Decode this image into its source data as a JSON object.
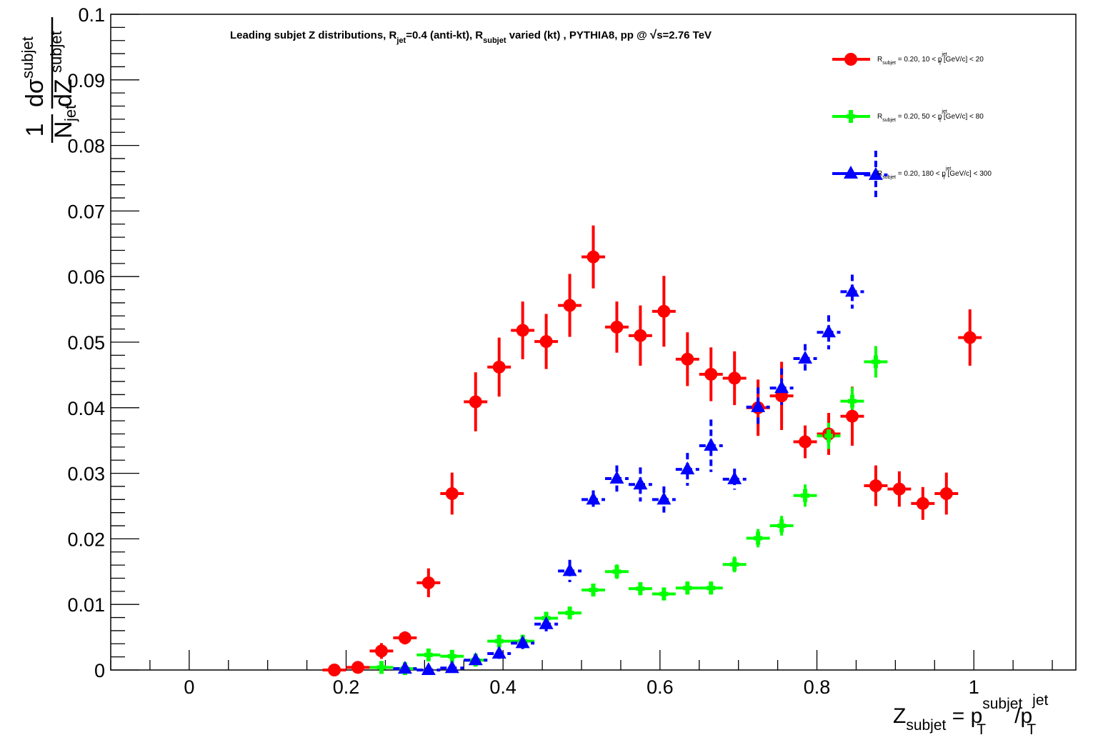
{
  "chart_data": {
    "type": "scatter",
    "title": "Leading subjet Z distributions, R_jet=0.4 (anti-kt), R_subjet varied (kt) , PYTHIA8, pp @ √s=2.76 TeV",
    "title_parts": {
      "p1": "Leading subjet Z distributions, R",
      "s1": "jet",
      "p2": "=0.4 (anti-kt), R",
      "s2": "subjet",
      "p3": " varied (kt) , PYTHIA8, pp @ ",
      "p4": "s=2.76 TeV"
    },
    "xlabel": "Z_subjet = p_T^subjet/p_T^jet",
    "xlabel_parts": {
      "z": "Z",
      "sub": "subjet",
      "eq": " = p",
      "sup1": "subjet",
      "T": "T",
      "slash": "/p",
      "sup2": "jet"
    },
    "ylabel": "1/N_jet dσ^subjet/dZ^subjet",
    "ylabel_parts": {
      "one": "1",
      "n": "N",
      "jet": "jet",
      "d1": "dσ",
      "sup1": "subjet",
      "d2": "dZ",
      "sup2": "subjet"
    },
    "xlim": [
      -0.1,
      1.13
    ],
    "ylim": [
      0,
      0.1
    ],
    "x_ticks": [
      "0",
      "0.2",
      "0.4",
      "0.6",
      "0.8",
      "1"
    ],
    "y_ticks": [
      "0",
      "0.01",
      "0.02",
      "0.03",
      "0.04",
      "0.05",
      "0.06",
      "0.07",
      "0.08",
      "0.09",
      "0.1"
    ],
    "grid": false,
    "legend_position": "top-right",
    "series": [
      {
        "name": "R_subjet = 0.20, 10 < p_T^jet [GeV/c] < 20",
        "legend": {
          "r": "R",
          "sub": "subjet",
          "a": " = 0.20,   10 < p",
          "jet": "jet",
          "T": "T",
          "b": " [GeV/c] <   20"
        },
        "color": "#ff0000",
        "marker": "circle",
        "points": [
          {
            "x": 0.185,
            "y": 0.0,
            "e": 0.0002
          },
          {
            "x": 0.215,
            "y": 0.0004,
            "e": 0.0003
          },
          {
            "x": 0.245,
            "y": 0.0029,
            "e": 0.0012
          },
          {
            "x": 0.275,
            "y": 0.0049,
            "e": 0.001
          },
          {
            "x": 0.305,
            "y": 0.0133,
            "e": 0.0022
          },
          {
            "x": 0.335,
            "y": 0.0269,
            "e": 0.0032
          },
          {
            "x": 0.365,
            "y": 0.0409,
            "e": 0.0045
          },
          {
            "x": 0.395,
            "y": 0.0462,
            "e": 0.0045
          },
          {
            "x": 0.425,
            "y": 0.0518,
            "e": 0.0044
          },
          {
            "x": 0.455,
            "y": 0.0501,
            "e": 0.0042
          },
          {
            "x": 0.485,
            "y": 0.0556,
            "e": 0.0048
          },
          {
            "x": 0.515,
            "y": 0.063,
            "e": 0.0048
          },
          {
            "x": 0.545,
            "y": 0.0523,
            "e": 0.0039
          },
          {
            "x": 0.575,
            "y": 0.051,
            "e": 0.0046
          },
          {
            "x": 0.605,
            "y": 0.0547,
            "e": 0.0054
          },
          {
            "x": 0.635,
            "y": 0.0474,
            "e": 0.0041
          },
          {
            "x": 0.665,
            "y": 0.0451,
            "e": 0.0041
          },
          {
            "x": 0.695,
            "y": 0.0445,
            "e": 0.0041
          },
          {
            "x": 0.725,
            "y": 0.04,
            "e": 0.0043
          },
          {
            "x": 0.755,
            "y": 0.0418,
            "e": 0.0052
          },
          {
            "x": 0.785,
            "y": 0.0348,
            "e": 0.0025
          },
          {
            "x": 0.815,
            "y": 0.036,
            "e": 0.0032
          },
          {
            "x": 0.845,
            "y": 0.0387,
            "e": 0.0045
          },
          {
            "x": 0.875,
            "y": 0.0281,
            "e": 0.0031
          },
          {
            "x": 0.905,
            "y": 0.0276,
            "e": 0.0027
          },
          {
            "x": 0.935,
            "y": 0.0254,
            "e": 0.0025
          },
          {
            "x": 0.965,
            "y": 0.0269,
            "e": 0.0032
          },
          {
            "x": 0.995,
            "y": 0.0507,
            "e": 0.0043
          }
        ]
      },
      {
        "name": "R_subjet = 0.20, 50 < p_T^jet [GeV/c] < 80",
        "legend": {
          "r": "R",
          "sub": "subjet",
          "a": " = 0.20,   50 < p",
          "jet": "jet",
          "T": "T",
          "b": " [GeV/c] <   80"
        },
        "color": "#00ff00",
        "marker": "square",
        "points": [
          {
            "x": 0.245,
            "y": 0.0004,
            "e": 0.0002
          },
          {
            "x": 0.275,
            "y": 0.0002,
            "e": 0.0002
          },
          {
            "x": 0.305,
            "y": 0.0023,
            "e": 0.0006
          },
          {
            "x": 0.335,
            "y": 0.0021,
            "e": 0.0005
          },
          {
            "x": 0.365,
            "y": 0.0015,
            "e": 0.0004
          },
          {
            "x": 0.395,
            "y": 0.0044,
            "e": 0.0006
          },
          {
            "x": 0.425,
            "y": 0.0044,
            "e": 0.0006
          },
          {
            "x": 0.455,
            "y": 0.0079,
            "e": 0.0008
          },
          {
            "x": 0.485,
            "y": 0.0087,
            "e": 0.0008
          },
          {
            "x": 0.515,
            "y": 0.0122,
            "e": 0.0009
          },
          {
            "x": 0.545,
            "y": 0.015,
            "e": 0.0011
          },
          {
            "x": 0.575,
            "y": 0.0124,
            "e": 0.001
          },
          {
            "x": 0.605,
            "y": 0.0116,
            "e": 0.001
          },
          {
            "x": 0.635,
            "y": 0.0125,
            "e": 0.001
          },
          {
            "x": 0.665,
            "y": 0.0125,
            "e": 0.001
          },
          {
            "x": 0.695,
            "y": 0.0161,
            "e": 0.0012
          },
          {
            "x": 0.725,
            "y": 0.0201,
            "e": 0.0014
          },
          {
            "x": 0.755,
            "y": 0.022,
            "e": 0.0015
          },
          {
            "x": 0.785,
            "y": 0.0266,
            "e": 0.0017
          },
          {
            "x": 0.815,
            "y": 0.0357,
            "e": 0.002
          },
          {
            "x": 0.845,
            "y": 0.041,
            "e": 0.0021
          },
          {
            "x": 0.875,
            "y": 0.047,
            "e": 0.0024
          }
        ]
      },
      {
        "name": "R_subjet = 0.20, 180 < p_T^jet [GeV/c] < 300",
        "legend": {
          "r": "R",
          "sub": "subjet",
          "a": " = 0.20,  180 < p",
          "jet": "jet",
          "T": "T",
          "b": " [GeV/c] <  300"
        },
        "color": "#0000ff",
        "marker": "triangle",
        "points": [
          {
            "x": 0.275,
            "y": 0.0002,
            "e": 0.0002
          },
          {
            "x": 0.305,
            "y": 0.0,
            "e": 0.0002
          },
          {
            "x": 0.335,
            "y": 0.0003,
            "e": 0.0003
          },
          {
            "x": 0.365,
            "y": 0.0015,
            "e": 0.0006
          },
          {
            "x": 0.395,
            "y": 0.0025,
            "e": 0.0008
          },
          {
            "x": 0.425,
            "y": 0.0041,
            "e": 0.0009
          },
          {
            "x": 0.455,
            "y": 0.007,
            "e": 0.0011
          },
          {
            "x": 0.485,
            "y": 0.0151,
            "e": 0.0017
          },
          {
            "x": 0.515,
            "y": 0.026,
            "e": 0.0014
          },
          {
            "x": 0.545,
            "y": 0.0292,
            "e": 0.002
          },
          {
            "x": 0.575,
            "y": 0.0283,
            "e": 0.0026
          },
          {
            "x": 0.605,
            "y": 0.026,
            "e": 0.002
          },
          {
            "x": 0.635,
            "y": 0.0306,
            "e": 0.0025
          },
          {
            "x": 0.665,
            "y": 0.0342,
            "e": 0.004
          },
          {
            "x": 0.695,
            "y": 0.0291,
            "e": 0.0016
          },
          {
            "x": 0.725,
            "y": 0.0401,
            "e": 0.003
          },
          {
            "x": 0.755,
            "y": 0.043,
            "e": 0.003
          },
          {
            "x": 0.785,
            "y": 0.0475,
            "e": 0.0022
          },
          {
            "x": 0.815,
            "y": 0.0515,
            "e": 0.0026
          },
          {
            "x": 0.845,
            "y": 0.0577,
            "e": 0.0026
          },
          {
            "x": 0.875,
            "y": 0.0755,
            "e": 0.0037
          }
        ]
      }
    ]
  }
}
